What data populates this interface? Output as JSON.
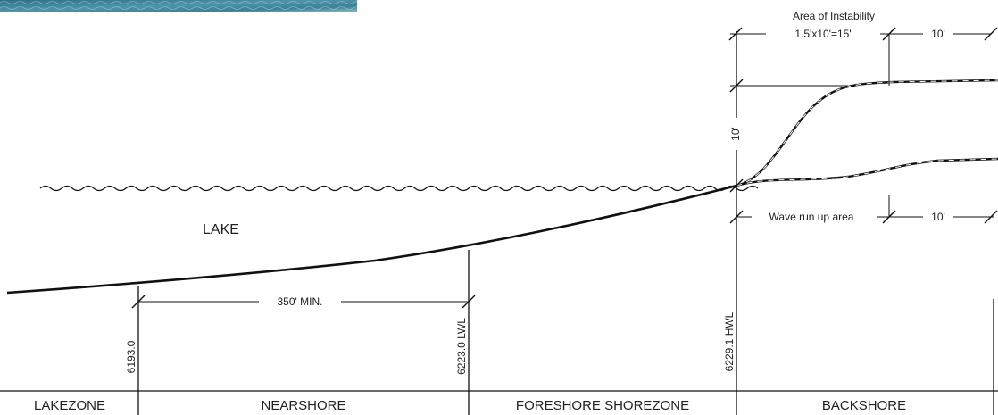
{
  "colors": {
    "ink": "#111111",
    "photo_dark": "#2f6f86",
    "photo_mid": "#4f94a8",
    "photo_light": "#8fc0cc"
  },
  "labels": {
    "area_of_instability": "Area of Instability",
    "instability_formula": "1.5'x10'=15'",
    "top_right_dim": "10'",
    "height_dim": "10'",
    "wave_run_up": "Wave run up area",
    "wave_right_dim": "10'",
    "lake": "LAKE",
    "nearshore_dim": "350' MIN.",
    "elev_lakezone": "6193.0",
    "elev_lwl": "6223.0 LWL",
    "elev_hwl": "6229.1 HWL"
  },
  "zones": [
    "LAKEZONE",
    "NEARSHORE",
    "FORESHORE SHOREZONE",
    "BACKSHORE"
  ],
  "photo_icon": "lake-photo-strip"
}
